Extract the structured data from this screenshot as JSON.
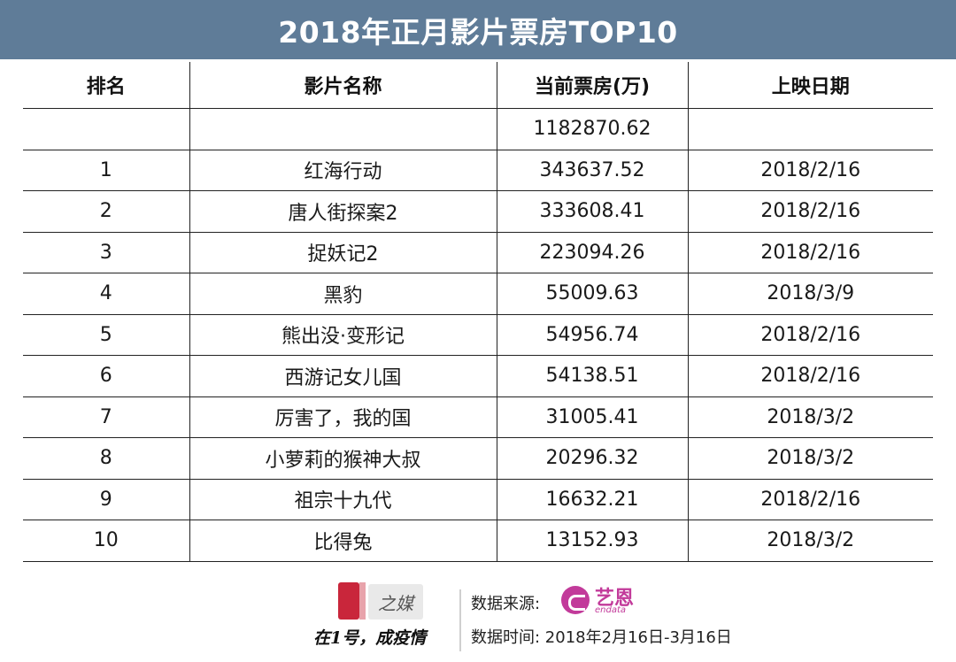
{
  "title": "2018年正月影片票房TOP10",
  "table": {
    "headers": [
      "排名",
      "影片名称",
      "当前票房(万)",
      "上映日期"
    ],
    "total": {
      "rank": "",
      "name": "",
      "box_office": "1182870.62",
      "date": ""
    },
    "rows": [
      {
        "rank": "1",
        "name": "红海行动",
        "box_office": "343637.52",
        "date": "2018/2/16"
      },
      {
        "rank": "2",
        "name": "唐人街探案2",
        "box_office": "333608.41",
        "date": "2018/2/16"
      },
      {
        "rank": "3",
        "name": "捉妖记2",
        "box_office": "223094.26",
        "date": "2018/2/16"
      },
      {
        "rank": "4",
        "name": "黑豹",
        "box_office": "55009.63",
        "date": "2018/3/9"
      },
      {
        "rank": "5",
        "name": "熊出没·变形记",
        "box_office": "54956.74",
        "date": "2018/2/16"
      },
      {
        "rank": "6",
        "name": "西游记女儿国",
        "box_office": "54138.51",
        "date": "2018/2/16"
      },
      {
        "rank": "7",
        "name": "厉害了，我的国",
        "box_office": "31005.41",
        "date": "2018/3/2"
      },
      {
        "rank": "8",
        "name": "小萝莉的猴神大叔",
        "box_office": "20296.32",
        "date": "2018/3/2"
      },
      {
        "rank": "9",
        "name": "祖宗十九代",
        "box_office": "16632.21",
        "date": "2018/2/16"
      },
      {
        "rank": "10",
        "name": "比得兔",
        "box_office": "13152.93",
        "date": "2018/3/2"
      }
    ]
  },
  "footer": {
    "logo_text": "之媒",
    "slogan": "在1号，成疫情",
    "source_label": "数据来源:",
    "source_brand_cn": "艺恩",
    "source_brand_en": "endata",
    "time_label": "数据时间:  2018年2月16日-3月16日"
  },
  "colors": {
    "title_bar": "#5f7c98",
    "logo_red": "#c9263b",
    "endata_magenta": "#c23a9a"
  },
  "icons": [
    "yi-media-logo-icon",
    "endata-logo-icon"
  ]
}
